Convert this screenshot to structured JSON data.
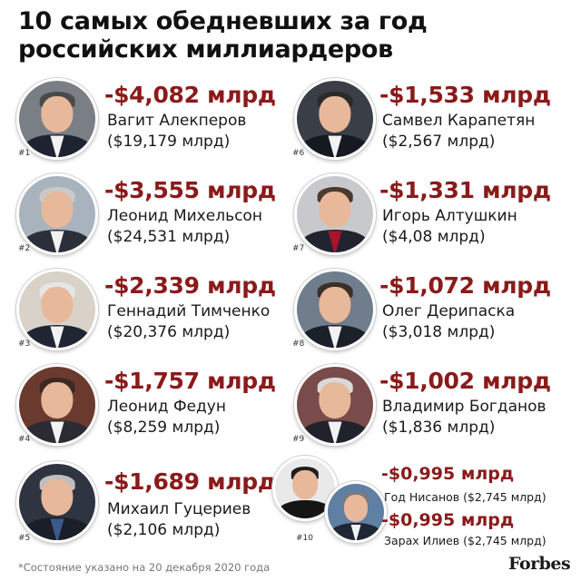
{
  "title": {
    "line1": "10 самых обедневших за год",
    "line2": "российских миллиардеров"
  },
  "entries": [
    {
      "rank": "#1",
      "loss": "-$4,082 млрд",
      "name": "Вагит Алекперов",
      "worth": "($19,179 млрд)"
    },
    {
      "rank": "#2",
      "loss": "-$3,555 млрд",
      "name": "Леонид Михельсон",
      "worth": "($24,531 млрд)"
    },
    {
      "rank": "#3",
      "loss": "-$2,339 млрд",
      "name": "Геннадий Тимченко",
      "worth": "($20,376 млрд)"
    },
    {
      "rank": "#4",
      "loss": "-$1,757 млрд",
      "name": "Леонид Федун",
      "worth": "($8,259 млрд)"
    },
    {
      "rank": "#5",
      "loss": "-$1,689 млрд",
      "name": "Михаил Гуцериев",
      "worth": "($2,106 млрд)"
    },
    {
      "rank": "#6",
      "loss": "-$1,533 млрд",
      "name": "Самвел Карапетян",
      "worth": "($2,567 млрд)"
    },
    {
      "rank": "#7",
      "loss": "-$1,331 млрд",
      "name": "Игорь Алтушкин",
      "worth": "($4,08 млрд)"
    },
    {
      "rank": "#8",
      "loss": "-$1,072 млрд",
      "name": "Олег Дерипаска",
      "worth": "($3,018 млрд)"
    },
    {
      "rank": "#9",
      "loss": "-$1,002 млрд",
      "name": "Владимир Богданов",
      "worth": "($1,836 млрд)"
    }
  ],
  "tenth": {
    "rank": "#10",
    "a": {
      "loss": "-$0,995 млрд",
      "line": "Год Нисанов ($2,745 млрд)"
    },
    "b": {
      "loss": "-$0,995 млрд",
      "line": "Зарах Илиев ($2,745 млрд)"
    }
  },
  "footnote": "*Состояние указано на 20 декабря 2020 года",
  "logo_text": "Forbes",
  "colors": {
    "loss": "#8b1a1a",
    "text": "#111111",
    "footnote": "#777777"
  }
}
